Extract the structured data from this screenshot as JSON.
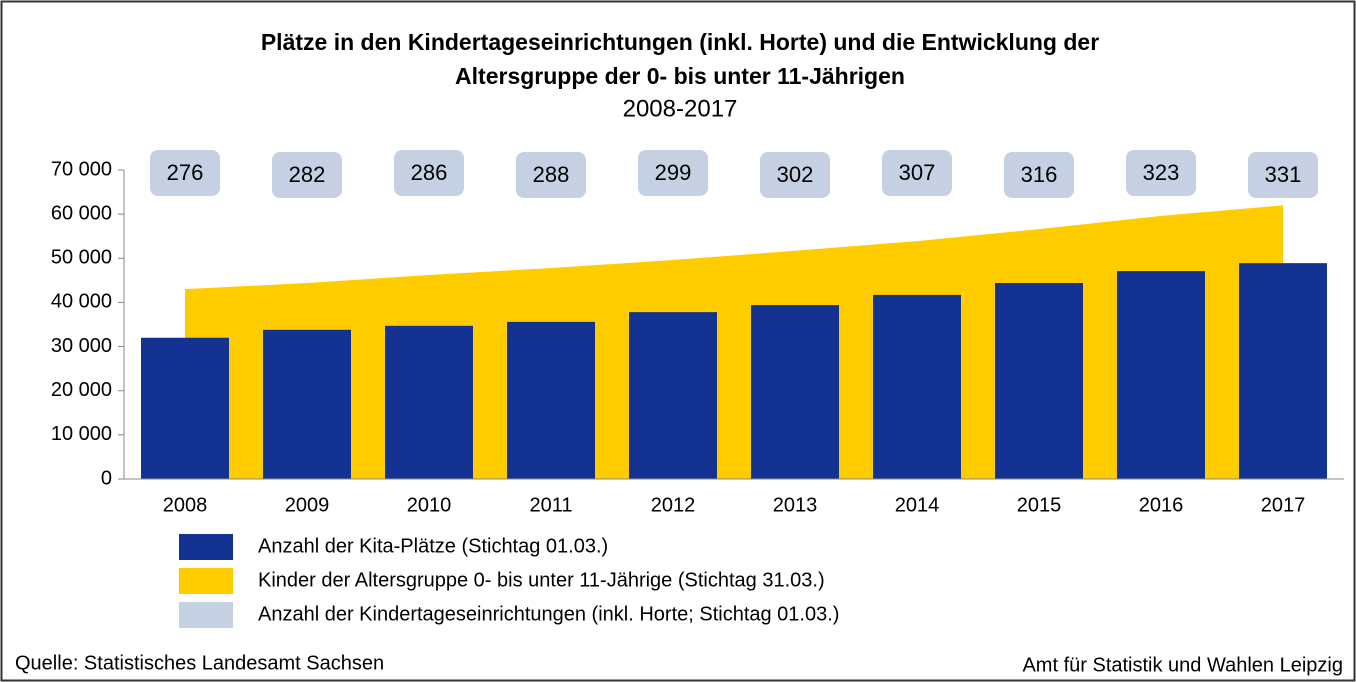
{
  "chart_data": {
    "type": "bar",
    "title": [
      "Plätze in den Kindertageseinrichtungen (inkl. Horte) und die Entwicklung der",
      "Altersgruppe der 0- bis unter 11-Jährigen"
    ],
    "subtitle": "2008-2017",
    "categories": [
      "2008",
      "2009",
      "2010",
      "2011",
      "2012",
      "2013",
      "2014",
      "2015",
      "2016",
      "2017"
    ],
    "series": [
      {
        "name": "Anzahl der Kita-Plätze (Stichtag 01.03.)",
        "type": "bar",
        "color": "#143291",
        "values": [
          32000,
          33800,
          34700,
          35600,
          37800,
          39400,
          41700,
          44400,
          47100,
          48900
        ]
      },
      {
        "name": "Kinder der Altersgruppe 0- bis unter 11-Jährige (Stichtag 31.03.)",
        "type": "area",
        "color": "#ffcc00",
        "values": [
          43000,
          44400,
          46200,
          47800,
          49600,
          51700,
          53900,
          56600,
          59600,
          62000
        ]
      },
      {
        "name": "Anzahl der Kindertageseinrichtungen (inkl. Horte; Stichtag 01.03.)",
        "type": "label",
        "color": "#c5d0e3",
        "values": [
          276,
          282,
          286,
          288,
          299,
          302,
          307,
          316,
          323,
          331
        ]
      }
    ],
    "ylim": [
      0,
      70000
    ],
    "yticks": [
      0,
      {
        "value": 10000,
        "label": "10 000"
      },
      {
        "value": 20000,
        "label": "20 000"
      },
      {
        "value": 30000,
        "label": "30 000"
      },
      {
        "value": 40000,
        "label": "40 000"
      },
      {
        "value": 50000,
        "label": "50 000"
      },
      {
        "value": 60000,
        "label": "60 000"
      },
      {
        "value": 70000,
        "label": "70 000"
      }
    ],
    "source": "Quelle: Statistisches Landesamt Sachsen",
    "credit": "Amt für Statistik und Wahlen Leipzig"
  }
}
